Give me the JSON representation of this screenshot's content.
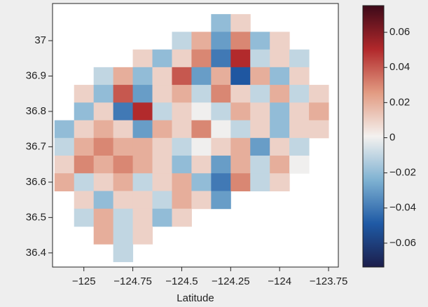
{
  "chart_data": {
    "type": "heatmap",
    "xlabel": "Latitude",
    "xlim": [
      -125.16,
      -123.7
    ],
    "ylim": [
      36.36,
      37.105
    ],
    "xticks": [
      {
        "value": -125,
        "label": "−125"
      },
      {
        "value": -124.75,
        "label": "−124.75"
      },
      {
        "value": -124.5,
        "label": "−124.5"
      },
      {
        "value": -124.25,
        "label": "−124.25"
      },
      {
        "value": -124,
        "label": "−124"
      },
      {
        "value": -123.75,
        "label": "−123.75"
      }
    ],
    "yticks": [
      36.4,
      36.5,
      36.6,
      36.7,
      36.8,
      36.9,
      37
    ],
    "x": [
      -125.1,
      -125.0,
      -124.9,
      -124.8,
      -124.7,
      -124.6,
      -124.5,
      -124.4,
      -124.3,
      -124.2,
      -124.1,
      -124.0,
      -123.9,
      -123.8
    ],
    "y": [
      37.05,
      37.0,
      36.95,
      36.9,
      36.85,
      36.8,
      36.75,
      36.7,
      36.65,
      36.6,
      36.55,
      36.5,
      36.45,
      36.4
    ],
    "z": [
      [
        null,
        null,
        null,
        null,
        null,
        null,
        null,
        null,
        -0.02,
        0.01,
        null,
        null,
        null,
        null
      ],
      [
        null,
        null,
        null,
        null,
        null,
        null,
        -0.01,
        0.02,
        -0.03,
        0.03,
        -0.02,
        0.01,
        null,
        null
      ],
      [
        null,
        null,
        null,
        null,
        0.01,
        -0.02,
        0.01,
        0.03,
        -0.04,
        0.05,
        -0.01,
        0.01,
        -0.01,
        null
      ],
      [
        null,
        null,
        -0.01,
        0.02,
        -0.02,
        0.01,
        0.04,
        -0.03,
        0.02,
        -0.05,
        0.02,
        -0.02,
        0.01,
        null
      ],
      [
        null,
        0.01,
        -0.02,
        0.04,
        -0.03,
        0.01,
        0.02,
        -0.01,
        0.03,
        0.01,
        -0.01,
        0.02,
        -0.01,
        0.01
      ],
      [
        null,
        -0.02,
        0.01,
        -0.04,
        0.05,
        -0.01,
        0.01,
        0,
        -0.01,
        0.02,
        0.01,
        -0.02,
        0.01,
        0.02
      ],
      [
        -0.02,
        0.01,
        0.02,
        0.01,
        -0.03,
        0.02,
        0.01,
        0.03,
        0,
        -0.01,
        0.01,
        -0.02,
        0.01,
        0.01
      ],
      [
        -0.01,
        0.02,
        0.03,
        0.02,
        0.02,
        0.01,
        -0.01,
        0,
        0.01,
        0.02,
        -0.03,
        0.01,
        -0.01,
        null
      ],
      [
        0.01,
        0.03,
        0.02,
        0.03,
        0.02,
        0.01,
        -0.02,
        0.01,
        -0.03,
        0.02,
        -0.01,
        0.02,
        0,
        null
      ],
      [
        0.02,
        -0.01,
        0.01,
        0.02,
        -0.01,
        0.01,
        0.02,
        -0.02,
        -0.04,
        0.03,
        -0.01,
        0.01,
        null,
        null
      ],
      [
        null,
        0.01,
        -0.02,
        0.01,
        0.01,
        -0.01,
        0.02,
        0.01,
        -0.03,
        null,
        null,
        null,
        null,
        null
      ],
      [
        null,
        -0.01,
        0.02,
        -0.01,
        0.01,
        -0.02,
        0.01,
        null,
        null,
        null,
        null,
        null,
        null,
        null
      ],
      [
        null,
        null,
        0.02,
        -0.01,
        0.01,
        null,
        null,
        null,
        null,
        null,
        null,
        null,
        null,
        null
      ],
      [
        null,
        null,
        null,
        -0.01,
        null,
        null,
        null,
        null,
        null,
        null,
        null,
        null,
        null,
        null
      ]
    ],
    "clim": [
      -0.0736,
      0.0752
    ],
    "colorbar_ticks": [
      0.06,
      0.04,
      0.02,
      0,
      {
        "value": -0.02,
        "label": "−0.02"
      },
      {
        "value": -0.04,
        "label": "−0.04"
      },
      {
        "value": -0.06,
        "label": "−0.06"
      }
    ],
    "colors": [
      "#1c1e4b",
      "#1f5aa5",
      "#7fb2d2",
      "#f4f1ef",
      "#e29b82",
      "#b1282b",
      "#3d0a19"
    ]
  }
}
